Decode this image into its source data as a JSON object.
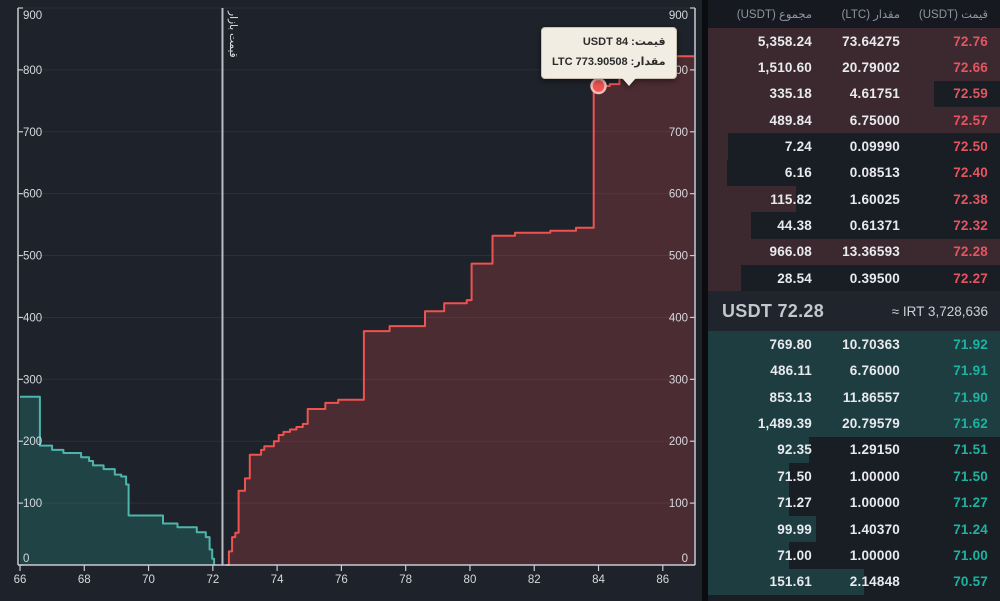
{
  "orderbook": {
    "headers": {
      "total": "مجموع (USDT)",
      "amount": "مقدار (LTC)",
      "price": "قیمت (USDT)"
    },
    "asks": [
      {
        "total": "5,358.24",
        "amount": "73.64275",
        "price": "72.76"
      },
      {
        "total": "1,510.60",
        "amount": "20.79002",
        "price": "72.66"
      },
      {
        "total": "335.18",
        "amount": "4.61751",
        "price": "72.59"
      },
      {
        "total": "489.84",
        "amount": "6.75000",
        "price": "72.57"
      },
      {
        "total": "7.24",
        "amount": "0.09990",
        "price": "72.50"
      },
      {
        "total": "6.16",
        "amount": "0.08513",
        "price": "72.40"
      },
      {
        "total": "115.82",
        "amount": "1.60025",
        "price": "72.38"
      },
      {
        "total": "44.38",
        "amount": "0.61371",
        "price": "72.32"
      },
      {
        "total": "966.08",
        "amount": "13.36593",
        "price": "72.28"
      },
      {
        "total": "28.54",
        "amount": "0.39500",
        "price": "72.27"
      }
    ],
    "mid": {
      "price": "USDT 72.28",
      "approx": "≈ IRT 3,728,636"
    },
    "bids": [
      {
        "total": "769.80",
        "amount": "10.70363",
        "price": "71.92"
      },
      {
        "total": "486.11",
        "amount": "6.76000",
        "price": "71.91"
      },
      {
        "total": "853.13",
        "amount": "11.86557",
        "price": "71.90"
      },
      {
        "total": "1,489.39",
        "amount": "20.79579",
        "price": "71.62"
      },
      {
        "total": "92.35",
        "amount": "1.29150",
        "price": "71.51"
      },
      {
        "total": "71.50",
        "amount": "1.00000",
        "price": "71.50"
      },
      {
        "total": "71.27",
        "amount": "1.00000",
        "price": "71.27"
      },
      {
        "total": "99.99",
        "amount": "1.40370",
        "price": "71.24"
      },
      {
        "total": "71.00",
        "amount": "1.00000",
        "price": "71.00"
      },
      {
        "total": "151.61",
        "amount": "2.14848",
        "price": "70.57"
      }
    ],
    "colors": {
      "ask_price": "#e45560",
      "bid_price": "#1db3a0",
      "ask_bar": "#3c2930",
      "bid_bar": "#1d3d41"
    }
  },
  "chart_data": {
    "type": "area",
    "title": "",
    "xlabel": "",
    "ylabel": "",
    "x_ticks": [
      66,
      68,
      70,
      72,
      74,
      76,
      78,
      80,
      82,
      84,
      86
    ],
    "y_ticks": [
      0,
      100,
      200,
      300,
      400,
      500,
      600,
      700,
      800,
      900
    ],
    "x_range": [
      66,
      86.97
    ],
    "y_range": [
      0,
      900
    ],
    "grid": true,
    "market_price": {
      "x": 72.3,
      "label": "قیمت بازار"
    },
    "series": [
      {
        "name": "bids",
        "color": "#4db6ac",
        "fill": "rgba(38,166,154,0.25)",
        "points": [
          [
            66,
            272
          ],
          [
            66.62,
            193
          ],
          [
            67.0,
            186
          ],
          [
            67.35,
            181
          ],
          [
            67.9,
            174
          ],
          [
            68.15,
            168
          ],
          [
            68.27,
            161
          ],
          [
            68.6,
            155
          ],
          [
            68.95,
            146
          ],
          [
            69.15,
            143
          ],
          [
            69.3,
            130
          ],
          [
            69.38,
            80
          ],
          [
            70.45,
            67
          ],
          [
            70.9,
            61
          ],
          [
            71.5,
            53
          ],
          [
            71.78,
            45
          ],
          [
            71.9,
            25
          ],
          [
            71.98,
            10
          ],
          [
            72.04,
            0
          ]
        ]
      },
      {
        "name": "asks",
        "color": "#ef5350",
        "fill": "rgba(239,83,80,0.22)",
        "points": [
          [
            72.42,
            0
          ],
          [
            72.5,
            22
          ],
          [
            72.6,
            45
          ],
          [
            72.7,
            52
          ],
          [
            72.8,
            120
          ],
          [
            73.0,
            140
          ],
          [
            73.15,
            178
          ],
          [
            73.5,
            186
          ],
          [
            73.6,
            192
          ],
          [
            73.9,
            200
          ],
          [
            74.05,
            210
          ],
          [
            74.2,
            215
          ],
          [
            74.4,
            219
          ],
          [
            74.6,
            223
          ],
          [
            74.8,
            228
          ],
          [
            74.95,
            252
          ],
          [
            75.5,
            262
          ],
          [
            75.9,
            267
          ],
          [
            76.7,
            378
          ],
          [
            77.5,
            386
          ],
          [
            78.6,
            410
          ],
          [
            79.2,
            423
          ],
          [
            79.9,
            428
          ],
          [
            80.05,
            487
          ],
          [
            80.7,
            532
          ],
          [
            81.4,
            537
          ],
          [
            82.5,
            540
          ],
          [
            83.3,
            545
          ],
          [
            83.85,
            774
          ],
          [
            84.35,
            777
          ],
          [
            84.65,
            790
          ],
          [
            85.0,
            820
          ],
          [
            85.8,
            822
          ]
        ]
      }
    ],
    "marker": {
      "x": 84,
      "y": 773.90508,
      "color": "#ef5350"
    },
    "tooltip": {
      "price_line": "قیمت: USDT 84",
      "amount_line": "مقدار: LTC 773.90508"
    }
  }
}
